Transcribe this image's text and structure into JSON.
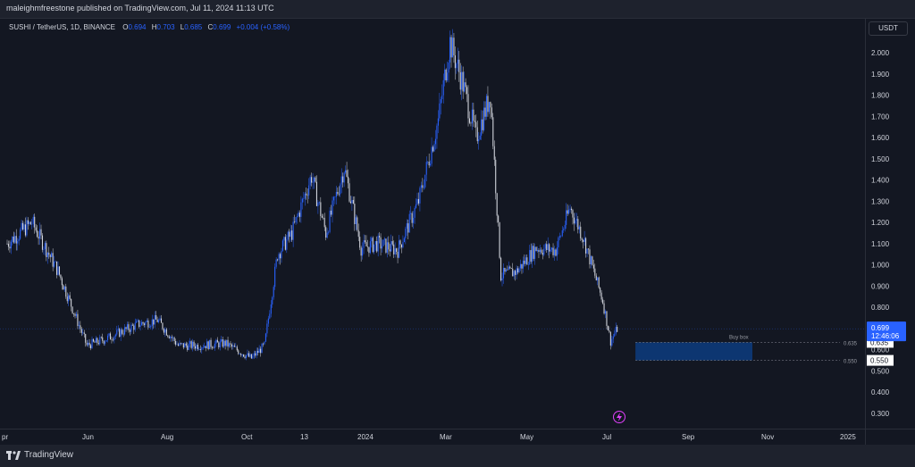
{
  "header": {
    "published_text": "maleighmfreestone published on TradingView.com, Jul 11, 2024 11:13 UTC"
  },
  "legend": {
    "symbol": "SUSHI / TetherUS, 1D, BINANCE",
    "o_label": "O",
    "o_value": "0.694",
    "h_label": "H",
    "h_value": "0.703",
    "l_label": "L",
    "l_value": "0.685",
    "c_label": "C",
    "c_value": "0.699",
    "change": "+0.004 (+0.58%)"
  },
  "price_axis": {
    "currency": "USDT"
  },
  "last_price": {
    "value": "0.699",
    "countdown": "12:46:06"
  },
  "zone_labels": {
    "upper": "0.635",
    "lower": "0.550"
  },
  "footer": {
    "brand": "TradingView"
  },
  "colors": {
    "up": "#2962ff",
    "down": "#d1d4dc",
    "zone": "#0d3a7a",
    "last_price": "#2962ff",
    "background": "#131722"
  },
  "icons": {
    "event": "lightning-icon",
    "logo": "tradingview-logo-icon"
  },
  "chart_data": {
    "type": "candlestick",
    "title": "SUSHI / TetherUS, 1D, BINANCE",
    "ylim": [
      0.2,
      2.15
    ],
    "y_ticks": [
      "2.000",
      "1.900",
      "1.800",
      "1.700",
      "1.600",
      "1.500",
      "1.400",
      "1.300",
      "1.200",
      "1.100",
      "1.000",
      "0.900",
      "0.800",
      "0.700",
      "0.600",
      "0.500",
      "0.400",
      "0.300"
    ],
    "x_ticks": [
      "pr",
      "Jun",
      "Aug",
      "Oct",
      "13",
      "2024",
      "Mar",
      "May",
      "Jul",
      "Sep",
      "Nov",
      "2025"
    ],
    "series": [
      {
        "name": "close",
        "x": [
          "2023-04-01",
          "2023-04-20",
          "2023-05-10",
          "2023-06-01",
          "2023-06-15",
          "2023-07-10",
          "2023-07-25",
          "2023-08-10",
          "2023-08-25",
          "2023-09-15",
          "2023-10-05",
          "2023-10-15",
          "2023-10-25",
          "2023-11-05",
          "2023-11-20",
          "2023-12-01",
          "2023-12-15",
          "2023-12-28",
          "2024-01-10",
          "2024-01-25",
          "2024-02-10",
          "2024-02-25",
          "2024-03-05",
          "2024-03-15",
          "2024-03-25",
          "2024-04-05",
          "2024-04-13",
          "2024-04-25",
          "2024-05-10",
          "2024-05-25",
          "2024-06-05",
          "2024-06-15",
          "2024-06-30",
          "2024-07-06",
          "2024-07-11"
        ],
        "values": [
          1.1,
          1.2,
          0.97,
          0.62,
          0.65,
          0.72,
          0.74,
          0.62,
          0.62,
          0.63,
          0.56,
          0.62,
          1.05,
          1.15,
          1.42,
          1.15,
          1.46,
          1.08,
          1.1,
          1.07,
          1.3,
          1.68,
          2.05,
          1.85,
          1.6,
          1.8,
          0.95,
          0.97,
          1.08,
          1.07,
          1.27,
          1.13,
          0.83,
          0.64,
          0.699
        ]
      }
    ],
    "annotations": [
      {
        "text": "Buy box",
        "type": "rectangle",
        "y_range": [
          0.55,
          0.635
        ],
        "x_range": [
          "2024-07-25",
          "2024-11-25"
        ]
      }
    ],
    "grid": false
  }
}
